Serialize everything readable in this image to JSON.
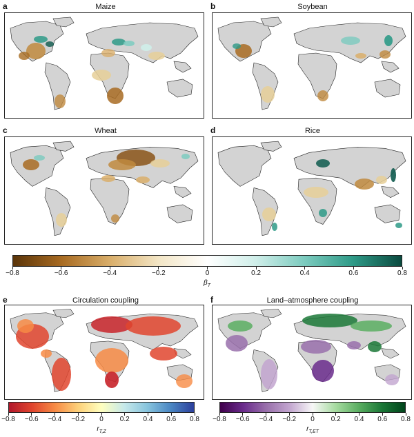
{
  "colors": {
    "land": "#d3d3d3",
    "ocean": "#ffffff",
    "coast": "#222222",
    "brown_dark": "#6b3f0e",
    "brown": "#c08a3e",
    "tan": "#e6cf98",
    "teal": "#2e9a87",
    "teal_dark": "#0e5a4e",
    "red": "#c8242a",
    "orange": "#f28a3a",
    "blue": "#3a5fb0",
    "purple": "#6a2b8c",
    "lilac": "#b99ad0",
    "green": "#2f8a3e"
  },
  "panels": [
    {
      "letter": "a",
      "title": "Maize"
    },
    {
      "letter": "b",
      "title": "Soybean"
    },
    {
      "letter": "c",
      "title": "Wheat"
    },
    {
      "letter": "d",
      "title": "Rice"
    },
    {
      "letter": "e",
      "title": "Circulation coupling"
    },
    {
      "letter": "f",
      "title": "Land–atmosphere coupling"
    }
  ],
  "colorbars": {
    "beta": {
      "ticks": [
        "−0.8",
        "−0.6",
        "−0.4",
        "−0.2",
        "0",
        "0.2",
        "0.4",
        "0.6",
        "0.8"
      ],
      "label_main": "β",
      "label_sub": "T",
      "stops": [
        "#5a3409",
        "#a86b22",
        "#d9ae6a",
        "#f3e6c6",
        "#ffffff",
        "#cfeee9",
        "#7ccbbf",
        "#2e9a87",
        "#0b4a3f"
      ]
    },
    "circ": {
      "ticks": [
        "−0.8",
        "−0.6",
        "−0.4",
        "−0.2",
        "0",
        "0.2",
        "0.4",
        "0.6",
        "0.8"
      ],
      "label_main": "r",
      "label_sub": "T,Z",
      "stops": [
        "#b2182b",
        "#e0452e",
        "#f78b45",
        "#fdd17a",
        "#ffffbf",
        "#c5e8ea",
        "#86c3dd",
        "#4a86c3",
        "#2c3f9c"
      ]
    },
    "land": {
      "ticks": [
        "−0.8",
        "−0.6",
        "−0.4",
        "−0.2",
        "0",
        "0.2",
        "0.4",
        "0.6",
        "0.8"
      ],
      "label_main": "r",
      "label_sub": "T,ET",
      "stops": [
        "#40004b",
        "#6a2b8c",
        "#9970ab",
        "#c2a5cf",
        "#f7f7f7",
        "#a6dba0",
        "#5aae61",
        "#1b7837",
        "#00441b"
      ]
    }
  }
}
